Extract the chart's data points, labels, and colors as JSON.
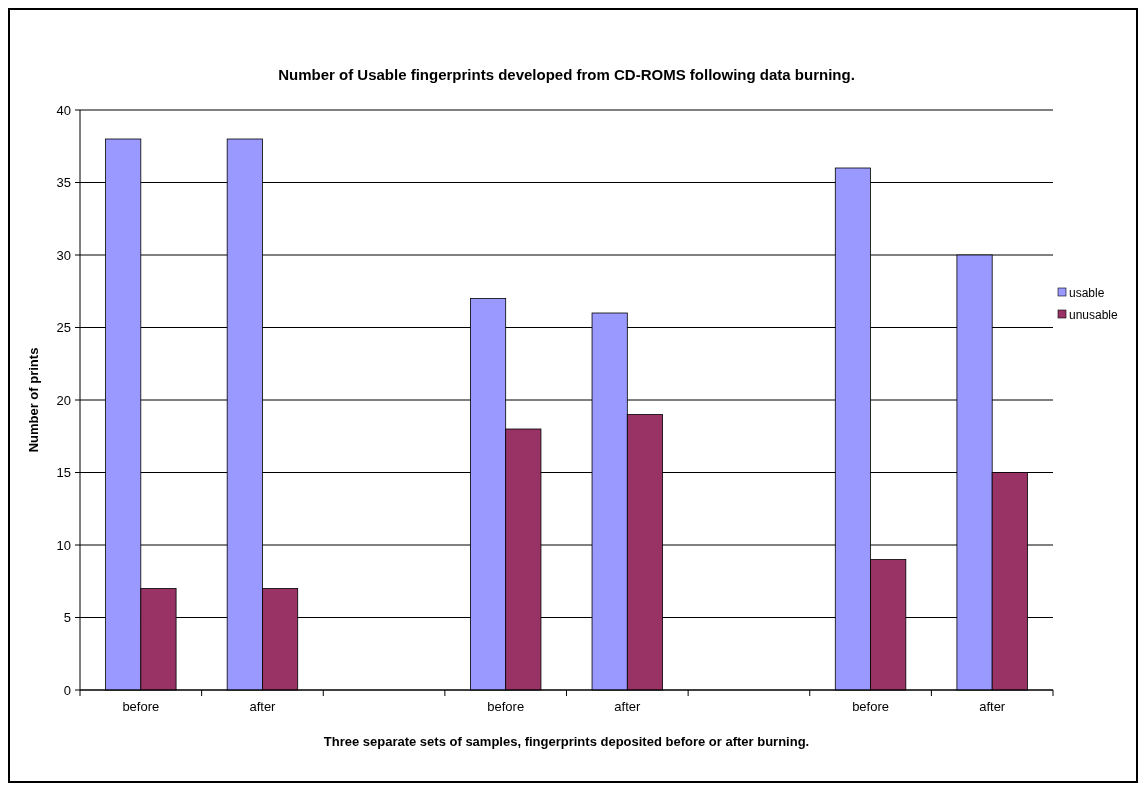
{
  "chart_data": {
    "type": "bar",
    "title": "Number of Usable fingerprints developed from CD-ROMS following data burning.",
    "xlabel": "Three separate sets of samples, fingerprints deposited before or after burning.",
    "ylabel": "Number of prints",
    "categories": [
      "before",
      "after",
      null,
      "before",
      "after",
      null,
      "before",
      "after"
    ],
    "series": [
      {
        "name": "usable",
        "color": "#9999ff",
        "values": [
          38,
          38,
          null,
          27,
          26,
          null,
          36,
          30
        ]
      },
      {
        "name": "unusable",
        "color": "#993366",
        "values": [
          7,
          7,
          null,
          18,
          19,
          null,
          9,
          15
        ]
      }
    ],
    "ylim": [
      0,
      40
    ],
    "yticks": [
      0,
      5,
      10,
      15,
      20,
      25,
      30,
      35,
      40
    ],
    "grid": "y",
    "legend": "right"
  }
}
